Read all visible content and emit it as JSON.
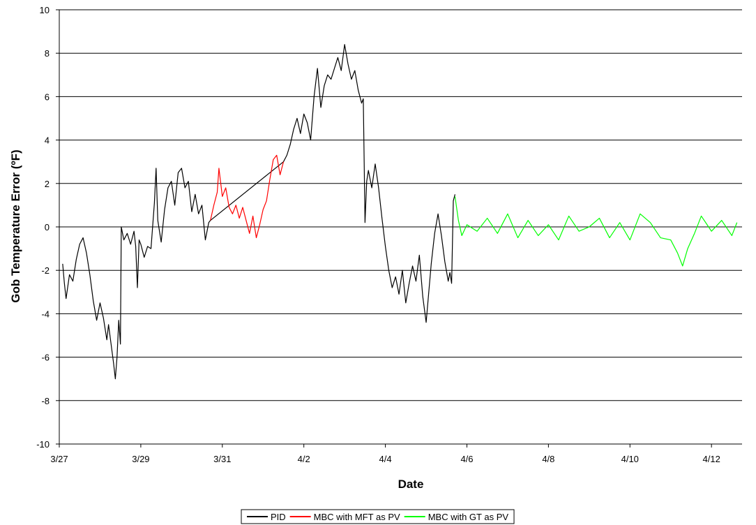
{
  "chart_data": {
    "type": "line",
    "title": "",
    "xlabel": "Date",
    "ylabel": "Gob Temperature Error (ºF)",
    "x_unit": "date",
    "x_tick_labels": [
      "3/27",
      "3/29",
      "3/31",
      "4/2",
      "4/4",
      "4/6",
      "4/8",
      "4/10",
      "4/12"
    ],
    "x_tick_dates": [
      "3/27",
      "3/29",
      "3/31",
      "4/2",
      "4/4",
      "4/6",
      "4/8",
      "4/10",
      "4/12"
    ],
    "xlim": [
      "3/27",
      "4/12 18:00"
    ],
    "ylim": [
      -10,
      10
    ],
    "y_ticks": [
      -10,
      -8,
      -6,
      -4,
      -2,
      0,
      2,
      4,
      6,
      8,
      10
    ],
    "grid": "horizontal",
    "legend_position": "bottom",
    "series": [
      {
        "name": "PID",
        "color": "#000000",
        "points": [
          [
            "3/27 02:00",
            -1.7
          ],
          [
            "3/27 03:00",
            -2.6
          ],
          [
            "3/27 04:00",
            -3.3
          ],
          [
            "3/27 06:00",
            -2.2
          ],
          [
            "3/27 08:00",
            -2.5
          ],
          [
            "3/27 10:00",
            -1.5
          ],
          [
            "3/27 12:00",
            -0.8
          ],
          [
            "3/27 14:00",
            -0.5
          ],
          [
            "3/27 16:00",
            -1.2
          ],
          [
            "3/27 18:00",
            -2.2
          ],
          [
            "3/27 20:00",
            -3.4
          ],
          [
            "3/27 22:00",
            -4.3
          ],
          [
            "3/28 00:00",
            -3.5
          ],
          [
            "3/28 02:00",
            -4.2
          ],
          [
            "3/28 04:00",
            -5.2
          ],
          [
            "3/28 05:00",
            -4.5
          ],
          [
            "3/28 07:00",
            -5.7
          ],
          [
            "3/28 08:00",
            -6.3
          ],
          [
            "3/28 09:00",
            -7.0
          ],
          [
            "3/28 10:00",
            -6.0
          ],
          [
            "3/28 11:00",
            -4.3
          ],
          [
            "3/28 12:00",
            -5.4
          ],
          [
            "3/28 12:30",
            0.0
          ],
          [
            "3/28 14:00",
            -0.6
          ],
          [
            "3/28 16:00",
            -0.3
          ],
          [
            "3/28 18:00",
            -0.8
          ],
          [
            "3/28 20:00",
            -0.2
          ],
          [
            "3/28 21:00",
            -0.9
          ],
          [
            "3/28 22:00",
            -2.8
          ],
          [
            "3/28 23:00",
            -0.6
          ],
          [
            "3/29 00:00",
            -0.8
          ],
          [
            "3/29 02:00",
            -1.4
          ],
          [
            "3/29 04:00",
            -0.9
          ],
          [
            "3/29 06:00",
            -1.0
          ],
          [
            "3/29 08:00",
            1.1
          ],
          [
            "3/29 09:00",
            2.7
          ],
          [
            "3/29 10:00",
            0.3
          ],
          [
            "3/29 12:00",
            -0.7
          ],
          [
            "3/29 14:00",
            0.8
          ],
          [
            "3/29 16:00",
            1.8
          ],
          [
            "3/29 18:00",
            2.1
          ],
          [
            "3/29 20:00",
            1.0
          ],
          [
            "3/29 22:00",
            2.5
          ],
          [
            "3/30 00:00",
            2.7
          ],
          [
            "3/30 02:00",
            1.8
          ],
          [
            "3/30 04:00",
            2.1
          ],
          [
            "3/30 06:00",
            0.7
          ],
          [
            "3/30 08:00",
            1.5
          ],
          [
            "3/30 10:00",
            0.6
          ],
          [
            "3/30 12:00",
            1.0
          ],
          [
            "3/30 14:00",
            -0.6
          ],
          [
            "3/30 16:00",
            0.2
          ],
          [
            "3/30 17:00",
            0.3
          ],
          [
            "4/1 12:00",
            3.0
          ],
          [
            "4/1 14:00",
            3.3
          ],
          [
            "4/1 16:00",
            3.8
          ],
          [
            "4/1 18:00",
            4.5
          ],
          [
            "4/1 20:00",
            5.0
          ],
          [
            "4/1 22:00",
            4.3
          ],
          [
            "4/2 00:00",
            5.2
          ],
          [
            "4/2 02:00",
            4.8
          ],
          [
            "4/2 04:00",
            4.0
          ],
          [
            "4/2 06:00",
            6.0
          ],
          [
            "4/2 08:00",
            7.3
          ],
          [
            "4/2 10:00",
            5.5
          ],
          [
            "4/2 12:00",
            6.5
          ],
          [
            "4/2 14:00",
            7.0
          ],
          [
            "4/2 16:00",
            6.8
          ],
          [
            "4/2 18:00",
            7.3
          ],
          [
            "4/2 20:00",
            7.8
          ],
          [
            "4/2 22:00",
            7.2
          ],
          [
            "4/3 00:00",
            8.4
          ],
          [
            "4/3 02:00",
            7.5
          ],
          [
            "4/3 04:00",
            6.8
          ],
          [
            "4/3 06:00",
            7.2
          ],
          [
            "4/3 08:00",
            6.3
          ],
          [
            "4/3 10:00",
            5.7
          ],
          [
            "4/3 11:00",
            5.9
          ],
          [
            "4/3 12:00",
            0.2
          ],
          [
            "4/3 13:00",
            2.1
          ],
          [
            "4/3 14:00",
            2.6
          ],
          [
            "4/3 16:00",
            1.8
          ],
          [
            "4/3 18:00",
            2.9
          ],
          [
            "4/3 20:00",
            1.8
          ],
          [
            "4/3 22:00",
            0.4
          ],
          [
            "4/4 00:00",
            -0.9
          ],
          [
            "4/4 02:00",
            -2.0
          ],
          [
            "4/4 04:00",
            -2.8
          ],
          [
            "4/4 06:00",
            -2.3
          ],
          [
            "4/4 08:00",
            -3.1
          ],
          [
            "4/4 10:00",
            -2.0
          ],
          [
            "4/4 12:00",
            -3.5
          ],
          [
            "4/4 14:00",
            -2.6
          ],
          [
            "4/4 16:00",
            -1.8
          ],
          [
            "4/4 18:00",
            -2.5
          ],
          [
            "4/4 20:00",
            -1.3
          ],
          [
            "4/4 22:00",
            -3.2
          ],
          [
            "4/5 00:00",
            -4.4
          ],
          [
            "4/5 01:00",
            -3.5
          ],
          [
            "4/5 03:00",
            -1.7
          ],
          [
            "4/5 05:00",
            -0.3
          ],
          [
            "4/5 07:00",
            0.6
          ],
          [
            "4/5 09:00",
            -0.4
          ],
          [
            "4/5 11:00",
            -1.6
          ],
          [
            "4/5 13:00",
            -2.5
          ],
          [
            "4/5 14:00",
            -2.1
          ],
          [
            "4/5 15:00",
            -2.6
          ],
          [
            "4/5 16:00",
            1.2
          ],
          [
            "4/5 17:00",
            1.5
          ]
        ]
      },
      {
        "name": "MBC with MFT as PV",
        "color": "#ff0000",
        "points": [
          [
            "3/30 17:00",
            0.3
          ],
          [
            "3/30 19:00",
            1.0
          ],
          [
            "3/30 21:00",
            1.6
          ],
          [
            "3/30 22:00",
            2.7
          ],
          [
            "3/31 00:00",
            1.4
          ],
          [
            "3/31 02:00",
            1.8
          ],
          [
            "3/31 04:00",
            0.9
          ],
          [
            "3/31 06:00",
            0.6
          ],
          [
            "3/31 08:00",
            1.0
          ],
          [
            "3/31 10:00",
            0.4
          ],
          [
            "3/31 12:00",
            0.9
          ],
          [
            "3/31 14:00",
            0.3
          ],
          [
            "3/31 16:00",
            -0.3
          ],
          [
            "3/31 18:00",
            0.5
          ],
          [
            "3/31 20:00",
            -0.5
          ],
          [
            "3/31 22:00",
            0.1
          ],
          [
            "4/1 00:00",
            0.8
          ],
          [
            "4/1 02:00",
            1.2
          ],
          [
            "4/1 04:00",
            2.2
          ],
          [
            "4/1 06:00",
            3.1
          ],
          [
            "4/1 08:00",
            3.3
          ],
          [
            "4/1 10:00",
            2.4
          ],
          [
            "4/1 12:00",
            3.0
          ]
        ]
      },
      {
        "name": "MBC with GT as PV",
        "color": "#00ff00",
        "points": [
          [
            "4/5 17:00",
            1.4
          ],
          [
            "4/5 19:00",
            0.3
          ],
          [
            "4/5 21:00",
            -0.4
          ],
          [
            "4/6 00:00",
            0.1
          ],
          [
            "4/6 06:00",
            -0.2
          ],
          [
            "4/6 12:00",
            0.4
          ],
          [
            "4/6 18:00",
            -0.3
          ],
          [
            "4/7 00:00",
            0.6
          ],
          [
            "4/7 06:00",
            -0.5
          ],
          [
            "4/7 12:00",
            0.3
          ],
          [
            "4/7 18:00",
            -0.4
          ],
          [
            "4/8 00:00",
            0.1
          ],
          [
            "4/8 06:00",
            -0.6
          ],
          [
            "4/8 12:00",
            0.5
          ],
          [
            "4/8 18:00",
            -0.2
          ],
          [
            "4/9 00:00",
            0.0
          ],
          [
            "4/9 06:00",
            0.4
          ],
          [
            "4/9 12:00",
            -0.5
          ],
          [
            "4/9 18:00",
            0.2
          ],
          [
            "4/10 00:00",
            -0.6
          ],
          [
            "4/10 06:00",
            0.6
          ],
          [
            "4/10 12:00",
            0.2
          ],
          [
            "4/10 18:00",
            -0.5
          ],
          [
            "4/11 00:00",
            -0.6
          ],
          [
            "4/11 04:00",
            -1.2
          ],
          [
            "4/11 07:00",
            -1.8
          ],
          [
            "4/11 10:00",
            -1.0
          ],
          [
            "4/11 14:00",
            -0.3
          ],
          [
            "4/11 18:00",
            0.5
          ],
          [
            "4/12 00:00",
            -0.2
          ],
          [
            "4/12 06:00",
            0.3
          ],
          [
            "4/12 12:00",
            -0.4
          ],
          [
            "4/12 15:00",
            0.2
          ]
        ]
      }
    ]
  }
}
